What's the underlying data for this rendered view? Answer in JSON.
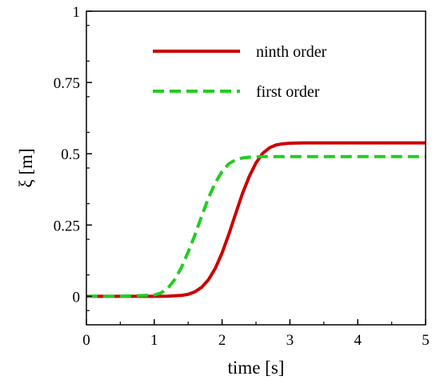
{
  "chart_data": {
    "type": "line",
    "title": "",
    "xlabel": "time [s]",
    "ylabel": "ξ [m]",
    "xlim": [
      0,
      5
    ],
    "ylim": [
      -0.1,
      1.0
    ],
    "xticks": [
      0,
      1,
      2,
      3,
      4,
      5
    ],
    "xtick_labels": [
      "0",
      "1",
      "2",
      "3",
      "4",
      "5"
    ],
    "yticks": [
      0,
      0.25,
      0.5,
      0.75,
      1
    ],
    "ytick_labels": [
      "0",
      "0.25",
      "0.5",
      "0.75",
      "1"
    ],
    "grid": false,
    "legend_position": "top-right",
    "series": [
      {
        "name": "ninth order",
        "color": "#cc0000",
        "style": "solid",
        "x": [
          0,
          0.5,
          1.0,
          1.2,
          1.4,
          1.5,
          1.6,
          1.7,
          1.8,
          1.9,
          2.0,
          2.1,
          2.2,
          2.3,
          2.4,
          2.5,
          2.6,
          2.7,
          2.8,
          2.9,
          3.0,
          3.2,
          3.5,
          4.0,
          4.5,
          5.0
        ],
        "y": [
          0,
          0,
          0,
          0.0005,
          0.003,
          0.007,
          0.016,
          0.032,
          0.058,
          0.098,
          0.152,
          0.218,
          0.29,
          0.36,
          0.42,
          0.468,
          0.502,
          0.521,
          0.531,
          0.535,
          0.537,
          0.538,
          0.538,
          0.538,
          0.538,
          0.538
        ]
      },
      {
        "name": "first order",
        "color": "#22cc22",
        "style": "dashed",
        "x": [
          0,
          0.5,
          1.0,
          1.1,
          1.2,
          1.3,
          1.4,
          1.5,
          1.6,
          1.7,
          1.8,
          1.9,
          2.0,
          2.1,
          2.2,
          2.3,
          2.4,
          2.5,
          2.6,
          2.8,
          3.0,
          3.5,
          4.0,
          4.5,
          5.0
        ],
        "y": [
          0,
          0,
          0.004,
          0.012,
          0.028,
          0.058,
          0.1,
          0.155,
          0.215,
          0.282,
          0.345,
          0.398,
          0.438,
          0.465,
          0.479,
          0.485,
          0.488,
          0.489,
          0.49,
          0.49,
          0.49,
          0.49,
          0.49,
          0.49,
          0.49
        ]
      }
    ]
  }
}
